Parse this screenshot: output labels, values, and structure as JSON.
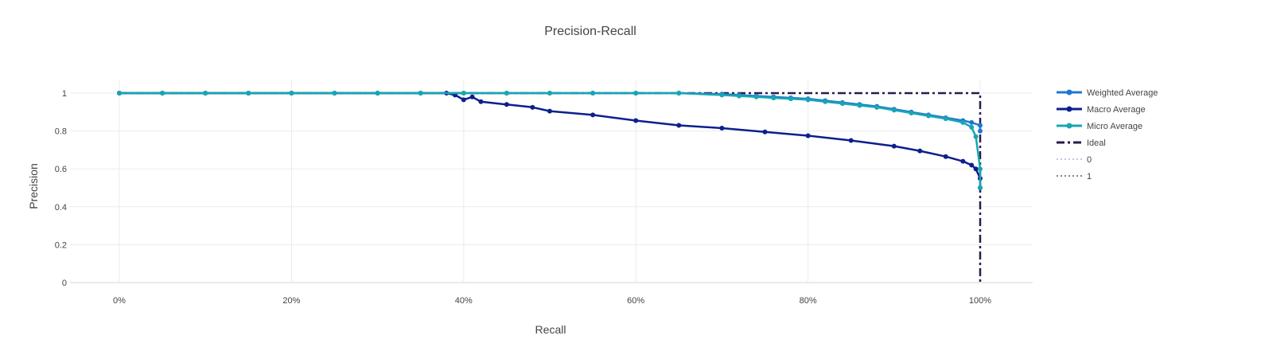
{
  "chart_data": {
    "type": "line",
    "title": "Precision-Recall",
    "xlabel": "Recall",
    "ylabel": "Precision",
    "xlim": [
      -0.06,
      1.06
    ],
    "ylim": [
      0,
      1.08
    ],
    "x_ticks": [
      0,
      0.2,
      0.4,
      0.6,
      0.8,
      1.0
    ],
    "x_tick_labels": [
      "0%",
      "20%",
      "40%",
      "60%",
      "80%",
      "100%"
    ],
    "y_ticks": [
      0,
      0.2,
      0.4,
      0.6,
      0.8,
      1
    ],
    "y_tick_labels": [
      "0",
      "0.2",
      "0.4",
      "0.6",
      "0.8",
      "1"
    ],
    "grid": true,
    "legend_position": "right",
    "series": [
      {
        "name": "Weighted Average",
        "color": "#1f77d4",
        "dash": "solid",
        "markers": true,
        "x": [
          0,
          0.05,
          0.1,
          0.15,
          0.2,
          0.25,
          0.3,
          0.35,
          0.4,
          0.45,
          0.5,
          0.55,
          0.6,
          0.65,
          0.7,
          0.72,
          0.74,
          0.76,
          0.78,
          0.8,
          0.82,
          0.84,
          0.86,
          0.88,
          0.9,
          0.92,
          0.94,
          0.96,
          0.98,
          0.99,
          1.0,
          1.0
        ],
        "y": [
          1,
          1,
          1,
          1,
          1,
          1,
          1,
          1,
          1,
          1,
          1,
          1,
          1,
          1,
          0.995,
          0.99,
          0.985,
          0.98,
          0.975,
          0.97,
          0.96,
          0.95,
          0.94,
          0.93,
          0.915,
          0.9,
          0.885,
          0.87,
          0.855,
          0.845,
          0.83,
          0.8
        ]
      },
      {
        "name": "Macro Average",
        "color": "#0d1f8c",
        "dash": "solid",
        "markers": true,
        "x": [
          0,
          0.05,
          0.1,
          0.15,
          0.2,
          0.25,
          0.3,
          0.35,
          0.38,
          0.39,
          0.4,
          0.41,
          0.42,
          0.45,
          0.48,
          0.5,
          0.55,
          0.6,
          0.65,
          0.7,
          0.75,
          0.8,
          0.85,
          0.9,
          0.93,
          0.96,
          0.98,
          0.99,
          0.995,
          1.0,
          1.0
        ],
        "y": [
          1,
          1,
          1,
          1,
          1,
          1,
          1,
          1,
          1,
          0.99,
          0.965,
          0.98,
          0.955,
          0.94,
          0.925,
          0.905,
          0.885,
          0.855,
          0.83,
          0.815,
          0.795,
          0.775,
          0.75,
          0.72,
          0.695,
          0.665,
          0.64,
          0.62,
          0.6,
          0.55,
          0.5
        ]
      },
      {
        "name": "Micro Average",
        "color": "#17a6b2",
        "dash": "solid",
        "markers": true,
        "x": [
          0,
          0.05,
          0.1,
          0.15,
          0.2,
          0.25,
          0.3,
          0.35,
          0.4,
          0.45,
          0.5,
          0.55,
          0.6,
          0.65,
          0.7,
          0.72,
          0.74,
          0.76,
          0.78,
          0.8,
          0.82,
          0.84,
          0.86,
          0.88,
          0.9,
          0.92,
          0.94,
          0.96,
          0.98,
          0.99,
          0.995,
          1.0,
          1.0
        ],
        "y": [
          1,
          1,
          1,
          1,
          1,
          1,
          1,
          1,
          1,
          1,
          1,
          1,
          1,
          1,
          0.99,
          0.985,
          0.98,
          0.975,
          0.97,
          0.965,
          0.955,
          0.945,
          0.935,
          0.925,
          0.91,
          0.895,
          0.88,
          0.865,
          0.845,
          0.82,
          0.77,
          0.6,
          0.5
        ]
      },
      {
        "name": "Ideal",
        "color": "#2a1b4d",
        "dash": "dashdot",
        "markers": false,
        "x": [
          0,
          1,
          1
        ],
        "y": [
          1,
          1,
          0
        ]
      },
      {
        "name": "0",
        "color": "#c9c4e3",
        "dash": "dot",
        "markers": false,
        "x": [],
        "y": []
      },
      {
        "name": "1",
        "color": "#8b7d96",
        "dash": "dot",
        "markers": false,
        "x": [],
        "y": []
      }
    ]
  }
}
